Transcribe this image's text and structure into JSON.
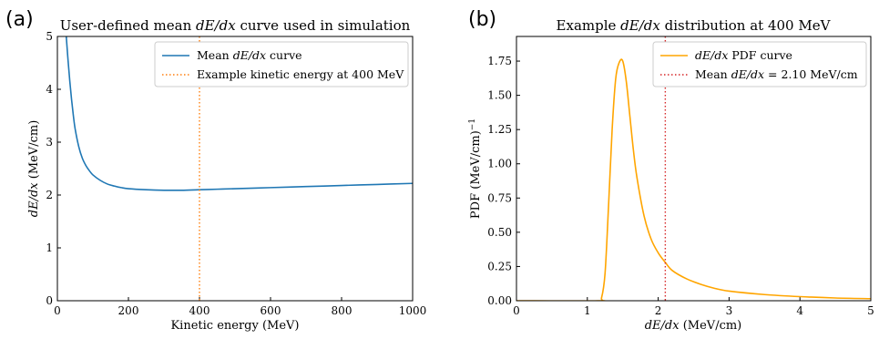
{
  "panel_a": {
    "letter": "(a)",
    "title_pre": "User-defined mean ",
    "title_em": "dE/dx",
    "title_post": " curve used in simulation",
    "xlabel": "Kinetic energy (MeV)",
    "ylabel_em": "dE/dx",
    "ylabel_post": " (MeV/cm)",
    "legend": [
      {
        "pre": "Mean ",
        "em": "dE/dx",
        "post": " curve",
        "color": "#1f77b4",
        "style": "solid"
      },
      {
        "pre": "Example kinetic energy at 400 MeV",
        "em": "",
        "post": "",
        "color": "#ff7f0e",
        "style": "dotted"
      }
    ],
    "chart_data": {
      "type": "line",
      "xlim": [
        0,
        1000
      ],
      "ylim": [
        0,
        5
      ],
      "xticks": [
        0,
        200,
        400,
        600,
        800,
        1000
      ],
      "yticks": [
        0,
        1,
        2,
        3,
        4,
        5
      ],
      "series": [
        {
          "name": "Mean dE/dx curve",
          "color": "#1f77b4",
          "x": [
            25,
            30,
            35,
            40,
            45,
            50,
            60,
            70,
            80,
            90,
            100,
            120,
            140,
            160,
            180,
            200,
            250,
            300,
            350,
            400,
            450,
            500,
            600,
            700,
            800,
            900,
            1000
          ],
          "y": [
            5.0,
            4.55,
            4.15,
            3.8,
            3.5,
            3.25,
            2.92,
            2.7,
            2.56,
            2.46,
            2.38,
            2.28,
            2.21,
            2.17,
            2.14,
            2.12,
            2.1,
            2.09,
            2.09,
            2.1,
            2.11,
            2.12,
            2.14,
            2.16,
            2.18,
            2.2,
            2.22
          ]
        }
      ],
      "vline": {
        "x": 400,
        "name": "Example kinetic energy at 400 MeV",
        "color": "#ff7f0e"
      },
      "legend_position": "top-right",
      "grid": false
    }
  },
  "panel_b": {
    "letter": "(b)",
    "title_pre": "Example ",
    "title_em": "dE/dx",
    "title_post": " distribution at 400 MeV",
    "xlabel_em": "dE/dx",
    "xlabel_post": " (MeV/cm)",
    "ylabel_pre": "PDF (MeV/cm)",
    "ylabel_sup": "−1",
    "legend": [
      {
        "pre": "",
        "em": "dE/dx",
        "post": " PDF curve",
        "color": "#ffa500",
        "style": "solid"
      },
      {
        "pre": "Mean ",
        "em": "dE/dx",
        "post": " = 2.10 MeV/cm",
        "color": "#d62728",
        "style": "dotted"
      }
    ],
    "chart_data": {
      "type": "line",
      "xlim": [
        0,
        5
      ],
      "ylim": [
        0,
        1.93
      ],
      "xticks": [
        0,
        1,
        2,
        3,
        4,
        5
      ],
      "yticks": [
        0.0,
        0.25,
        0.5,
        0.75,
        1.0,
        1.25,
        1.5,
        1.75
      ],
      "ytick_labels": [
        "0.00",
        "0.25",
        "0.50",
        "0.75",
        "1.00",
        "1.25",
        "1.50",
        "1.75"
      ],
      "series": [
        {
          "name": "dE/dx PDF curve",
          "color": "#ffa500",
          "x": [
            0,
            1.15,
            1.2,
            1.25,
            1.3,
            1.35,
            1.4,
            1.45,
            1.5,
            1.55,
            1.6,
            1.65,
            1.7,
            1.8,
            1.9,
            2.0,
            2.1,
            2.2,
            2.4,
            2.6,
            2.8,
            3.0,
            3.5,
            4.0,
            4.5,
            5.0
          ],
          "y": [
            0,
            0,
            0.02,
            0.2,
            0.7,
            1.25,
            1.62,
            1.74,
            1.75,
            1.6,
            1.35,
            1.1,
            0.9,
            0.62,
            0.45,
            0.35,
            0.28,
            0.22,
            0.16,
            0.12,
            0.09,
            0.07,
            0.045,
            0.03,
            0.02,
            0.015
          ]
        }
      ],
      "vline": {
        "x": 2.1,
        "name": "Mean dE/dx = 2.10 MeV/cm",
        "color": "#d62728"
      },
      "legend_position": "top-right",
      "grid": false
    }
  }
}
